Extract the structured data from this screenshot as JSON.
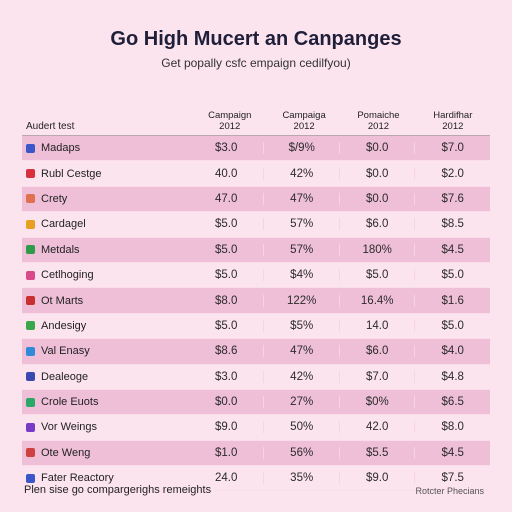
{
  "header": {
    "title": "Go High Mucert an Canpanges",
    "subtitle": "Get popally csfc empaign cedilfyou)"
  },
  "table": {
    "first_header": "Audert test",
    "columns": [
      {
        "line1": "Campaign",
        "line2": "2012"
      },
      {
        "line1": "Campaiga",
        "line2": "2012"
      },
      {
        "line1": "Pomaiche",
        "line2": "2012"
      },
      {
        "line1": "Hardifhar",
        "line2": "2012"
      }
    ],
    "rows": [
      {
        "label": "Madaps",
        "icon_color": "#3a56c8",
        "values": [
          "$3.0",
          "$/9%",
          "$0.0",
          "$7.0"
        ]
      },
      {
        "label": "Rubl Cestge",
        "icon_color": "#d93040",
        "values": [
          "40.0",
          "42%",
          "$0.0",
          "$2.0"
        ]
      },
      {
        "label": "Crety",
        "icon_color": "#e07050",
        "values": [
          "47.0",
          "47%",
          "$0.0",
          "$7.6"
        ]
      },
      {
        "label": "Cardagel",
        "icon_color": "#e8a020",
        "values": [
          "$5.0",
          "57%",
          "$6.0",
          "$8.5"
        ]
      },
      {
        "label": "Metdals",
        "icon_color": "#2f9a4a",
        "values": [
          "$5.0",
          "57%",
          "180%",
          "$4.5"
        ]
      },
      {
        "label": "Cetlhoging",
        "icon_color": "#d84a8a",
        "values": [
          "$5.0",
          "$4%",
          "$5.0",
          "$5.0"
        ]
      },
      {
        "label": "Ot Marts",
        "icon_color": "#c83030",
        "values": [
          "$8.0",
          "122%",
          "16.4%",
          "$1.6"
        ]
      },
      {
        "label": "Andesigy",
        "icon_color": "#3aa84a",
        "values": [
          "$5.0",
          "$5%",
          "14.0",
          "$5.0"
        ]
      },
      {
        "label": "Val Enasy",
        "icon_color": "#2f8ad8",
        "values": [
          "$8.6",
          "47%",
          "$6.0",
          "$4.0"
        ]
      },
      {
        "label": "Dealeoge",
        "icon_color": "#3a4ab0",
        "values": [
          "$3.0",
          "42%",
          "$7.0",
          "$4.8"
        ]
      },
      {
        "label": "Crole Euots",
        "icon_color": "#2aa86a",
        "values": [
          "$0.0",
          "27%",
          "$0%",
          "$6.5"
        ]
      },
      {
        "label": "Vor Weings",
        "icon_color": "#7a3ac8",
        "values": [
          "$9.0",
          "50%",
          "42.0",
          "$8.0"
        ]
      },
      {
        "label": "Ote Weng",
        "icon_color": "#d04040",
        "values": [
          "$1.0",
          "56%",
          "$5.5",
          "$4.5"
        ]
      },
      {
        "label": "Fater Reactory",
        "icon_color": "#3a56c8",
        "values": [
          "24.0",
          "35%",
          "$9.0",
          "$7.5"
        ]
      }
    ]
  },
  "footer": {
    "left": "Plen sise go compargerighs remeights",
    "right": "Rotcter Phecians"
  }
}
